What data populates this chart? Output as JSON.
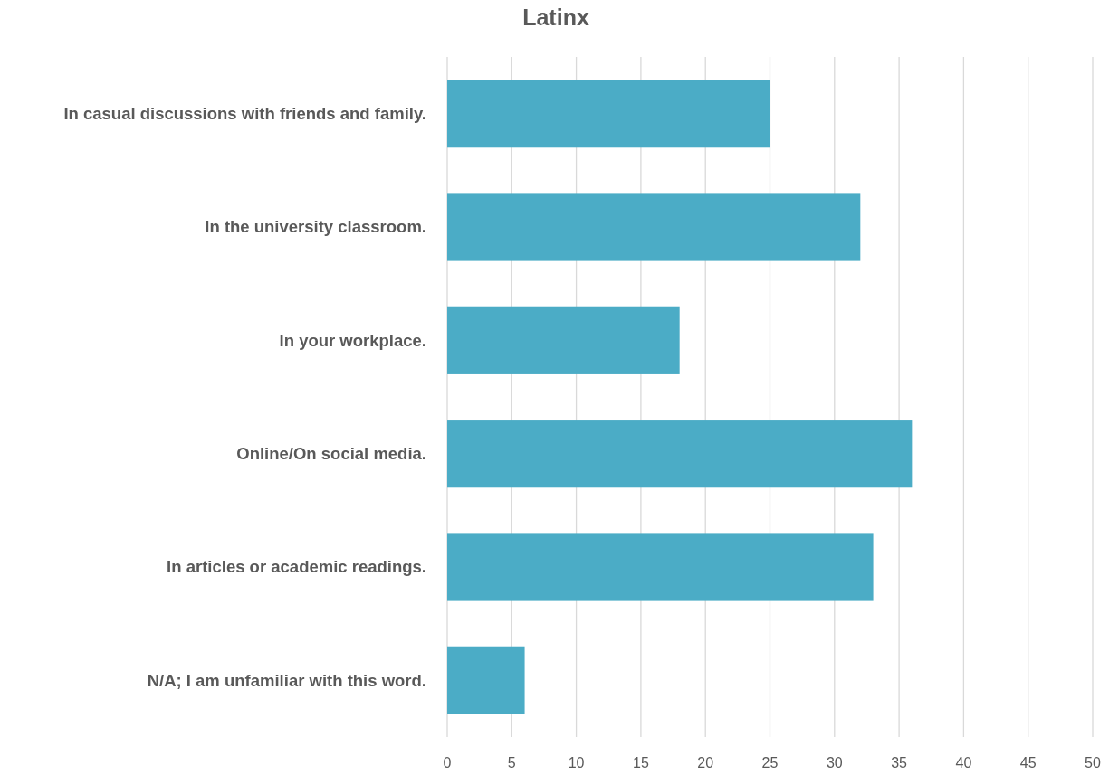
{
  "chart_data": {
    "type": "bar",
    "title": "Latinx",
    "orientation": "horizontal",
    "categories": [
      "In casual discussions with friends and family.",
      "In the university classroom.",
      "In your workplace.",
      "Online/On social media.",
      "In articles or academic readings.",
      "N/A; I am unfamiliar with this word."
    ],
    "values": [
      25,
      32,
      18,
      36,
      33,
      6
    ],
    "color": "#4bacc6",
    "xlim": [
      0,
      50
    ],
    "xticks": [
      0,
      5,
      10,
      15,
      20,
      25,
      30,
      35,
      40,
      45,
      50
    ],
    "grid": "x"
  }
}
